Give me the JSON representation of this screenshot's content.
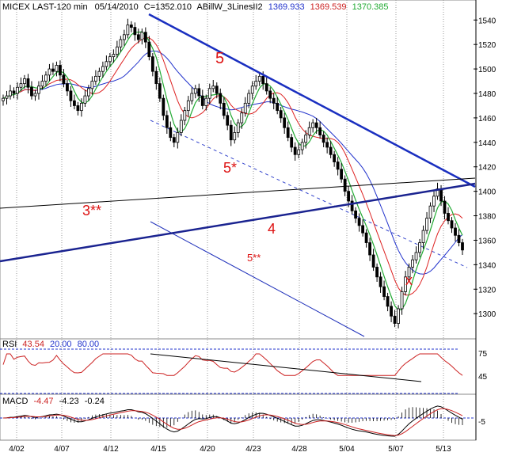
{
  "header": {
    "symbol": "MICEX LAST-120 min",
    "date": "05/14/2010",
    "close": "C=1352.010",
    "indicator": "ABillW_3LinesII2",
    "line1": "1369.933",
    "line2": "1369.539",
    "line3": "1370.385"
  },
  "rsi": {
    "label": "RSI",
    "value": "43.54",
    "low": "20.00",
    "high": "80.00",
    "ticks": [
      "75",
      "45"
    ]
  },
  "macd": {
    "label": "MACD",
    "v1": "-4.47",
    "v2": "-4.23",
    "v3": "-0.24",
    "ticks": [
      "-5"
    ]
  },
  "annotations": {
    "wave5": "5",
    "wave5star": "5*",
    "wave5dstar": "5**",
    "wave3dstar": "3**",
    "wave4": "4",
    "x": "x"
  },
  "chart_data": {
    "type": "candlestick",
    "title": "MICEX LAST-120 min",
    "x_tick_labels": [
      "4/02",
      "4/07",
      "4/12",
      "4/15",
      "4/20",
      "4/23",
      "4/28",
      "5/04",
      "5/07",
      "5/13"
    ],
    "y_tick_labels": [
      1540,
      1520,
      1500,
      1480,
      1460,
      1440,
      1420,
      1400,
      1380,
      1360,
      1340,
      1320,
      1300
    ],
    "ylim": [
      1282,
      1546
    ],
    "approx_close": [
      1476,
      1478,
      1482,
      1480,
      1485,
      1488,
      1492,
      1485,
      1478,
      1480,
      1486,
      1490,
      1495,
      1500,
      1498,
      1503,
      1495,
      1488,
      1482,
      1474,
      1470,
      1466,
      1472,
      1478,
      1484,
      1490,
      1494,
      1498,
      1502,
      1506,
      1510,
      1512,
      1518,
      1524,
      1528,
      1536,
      1534,
      1528,
      1524,
      1530,
      1522,
      1510,
      1498,
      1488,
      1476,
      1462,
      1452,
      1444,
      1440,
      1448,
      1458,
      1466,
      1474,
      1480,
      1484,
      1478,
      1470,
      1476,
      1484,
      1486,
      1480,
      1472,
      1462,
      1454,
      1442,
      1448,
      1456,
      1464,
      1472,
      1480,
      1486,
      1490,
      1494,
      1488,
      1482,
      1476,
      1472,
      1466,
      1460,
      1452,
      1444,
      1436,
      1430,
      1434,
      1440,
      1446,
      1452,
      1456,
      1452,
      1446,
      1440,
      1436,
      1430,
      1424,
      1418,
      1410,
      1400,
      1392,
      1384,
      1378,
      1372,
      1366,
      1358,
      1348,
      1338,
      1330,
      1322,
      1314,
      1306,
      1298,
      1292,
      1304,
      1318,
      1330,
      1338,
      1344,
      1350,
      1358,
      1368,
      1378,
      1388,
      1396,
      1402,
      1392,
      1382,
      1376,
      1370,
      1364,
      1358,
      1352
    ]
  }
}
